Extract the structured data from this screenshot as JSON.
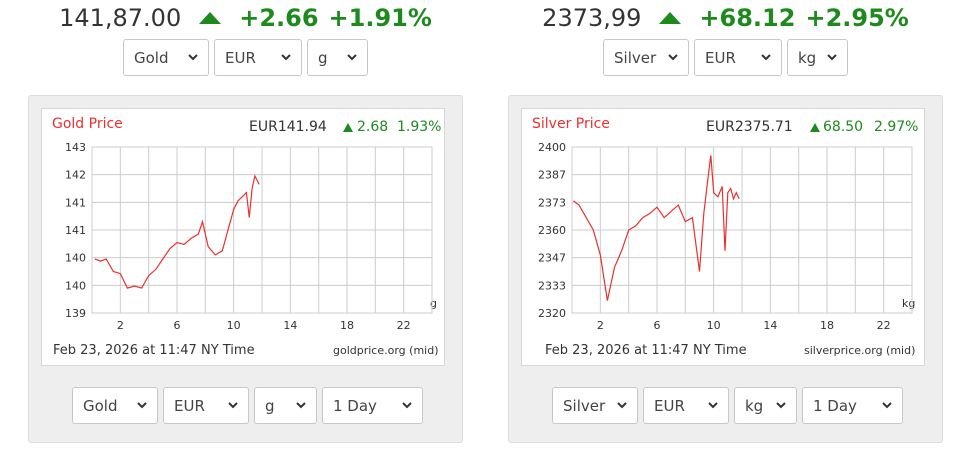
{
  "widgets": [
    {
      "ticker": {
        "price": "141,87.00",
        "change": "+2.66",
        "percent": "+1.91%"
      },
      "top_selects": {
        "metal": "Gold",
        "currency": "EUR",
        "unit": "g"
      },
      "bottom_selects": {
        "metal": "Gold",
        "currency": "EUR",
        "unit": "g",
        "period": "1 Day"
      },
      "chart": {
        "title": "Gold Price",
        "value": "EUR141.94",
        "change": "2.68",
        "percent": "1.93%",
        "footer": "Feb 23, 2026 at 11:47 NY Time",
        "source": "goldprice.org (mid)",
        "unit_label": "g",
        "y_ticks": [
          "143",
          "142",
          "141",
          "141",
          "140",
          "140",
          "139"
        ],
        "x_ticks": [
          "2",
          "6",
          "10",
          "14",
          "18",
          "22"
        ]
      }
    },
    {
      "ticker": {
        "price": "2373,99",
        "change": "+68.12",
        "percent": "+2.95%"
      },
      "top_selects": {
        "metal": "Silver",
        "currency": "EUR",
        "unit": "kg"
      },
      "bottom_selects": {
        "metal": "Silver",
        "currency": "EUR",
        "unit": "kg",
        "period": "1 Day"
      },
      "chart": {
        "title": "Silver Price",
        "value": "EUR2375.71",
        "change": "68.50",
        "percent": "2.97%",
        "footer": "Feb 23, 2026 at 11:47 NY Time",
        "source": "silverprice.org (mid)",
        "unit_label": "kg",
        "y_ticks": [
          "2400",
          "2387",
          "2373",
          "2360",
          "2347",
          "2333",
          "2320"
        ],
        "x_ticks": [
          "2",
          "6",
          "10",
          "14",
          "18",
          "22"
        ]
      }
    }
  ],
  "colors": {
    "up_green": "#1e8a1e",
    "line_red": "#e8312f",
    "grid": "#cccccc"
  },
  "icons": {
    "up": "triangle-up-icon",
    "dropdown": "chevron-down-icon"
  },
  "chart_data": [
    {
      "type": "line",
      "title": "Gold Price",
      "xlabel": "",
      "ylabel": "",
      "xlim": [
        0,
        24
      ],
      "ylim": [
        139,
        143
      ],
      "series": [
        {
          "name": "",
          "x": [
            0.2,
            0.6,
            1.0,
            1.5,
            2.0,
            2.5,
            3.0,
            3.5,
            4.0,
            4.5,
            5.0,
            5.5,
            6.0,
            6.5,
            7.0,
            7.5,
            7.8,
            8.2,
            8.7,
            9.2,
            9.6,
            10.0,
            10.3,
            10.6,
            10.9,
            11.1,
            11.3,
            11.5,
            11.8
          ],
          "y": [
            140.3,
            140.25,
            140.3,
            140.0,
            139.95,
            139.6,
            139.65,
            139.6,
            139.9,
            140.05,
            140.3,
            140.55,
            140.7,
            140.65,
            140.8,
            140.9,
            141.2,
            140.6,
            140.4,
            140.5,
            141.0,
            141.5,
            141.7,
            141.8,
            141.9,
            141.3,
            142.0,
            142.3,
            142.1
          ]
        }
      ]
    },
    {
      "type": "line",
      "title": "Silver Price",
      "xlabel": "",
      "ylabel": "",
      "xlim": [
        0,
        24
      ],
      "ylim": [
        2320,
        2400
      ],
      "series": [
        {
          "name": "",
          "x": [
            0.1,
            0.5,
            1.0,
            1.5,
            2.0,
            2.5,
            3.0,
            3.5,
            4.0,
            4.5,
            5.0,
            5.5,
            6.0,
            6.5,
            7.0,
            7.5,
            8.0,
            8.5,
            9.0,
            9.3,
            9.6,
            9.8,
            10.0,
            10.3,
            10.6,
            10.8,
            11.0,
            11.2,
            11.4,
            11.6,
            11.8
          ],
          "y": [
            2374,
            2372,
            2366,
            2360,
            2348,
            2326,
            2342,
            2350,
            2360,
            2362,
            2366,
            2368,
            2371,
            2366,
            2369,
            2372,
            2364,
            2366,
            2340,
            2368,
            2385,
            2396,
            2378,
            2376,
            2381,
            2350,
            2378,
            2380,
            2375,
            2378,
            2375
          ]
        }
      ]
    }
  ]
}
